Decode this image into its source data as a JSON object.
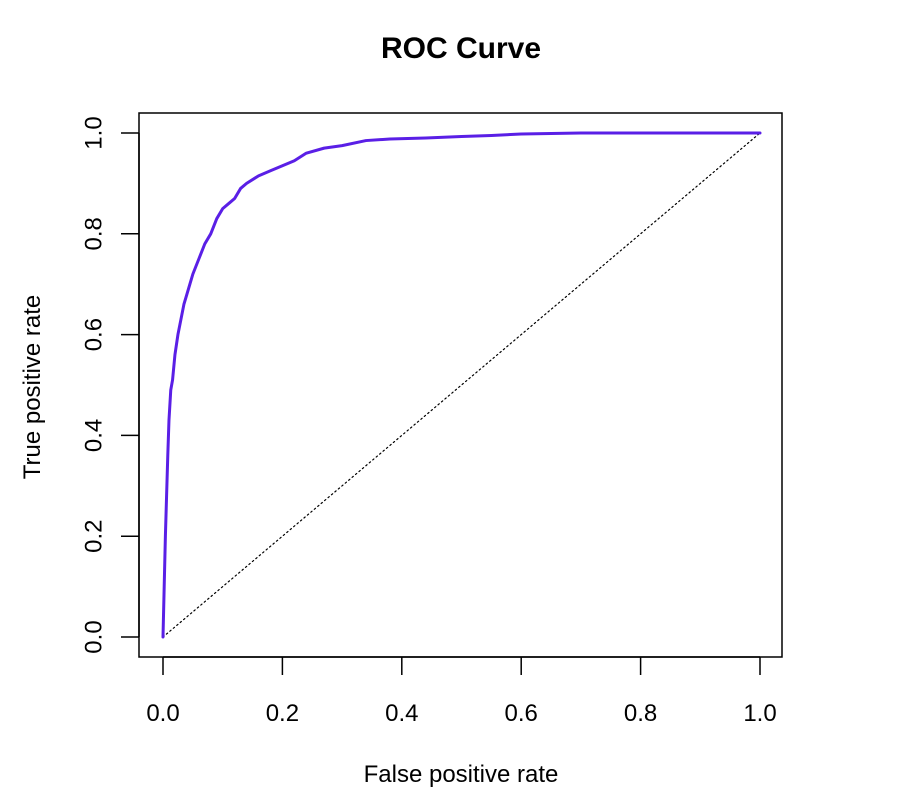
{
  "chart_data": {
    "type": "line",
    "title": "ROC Curve",
    "xlabel": "False positive rate",
    "ylabel": "True positive rate",
    "xlim": [
      0,
      1
    ],
    "ylim": [
      0,
      1
    ],
    "x_ticks": [
      "0.0",
      "0.2",
      "0.4",
      "0.6",
      "0.8",
      "1.0"
    ],
    "y_ticks": [
      "0.0",
      "0.2",
      "0.4",
      "0.6",
      "0.8",
      "1.0"
    ],
    "x_tick_values": [
      0,
      0.2,
      0.4,
      0.6,
      0.8,
      1.0
    ],
    "y_tick_values": [
      0,
      0.2,
      0.4,
      0.6,
      0.8,
      1.0
    ],
    "grid": false,
    "legend": "none",
    "series": [
      {
        "color": "#5a1fe6",
        "x": [
          0.0,
          0.002,
          0.004,
          0.006,
          0.008,
          0.01,
          0.013,
          0.016,
          0.02,
          0.025,
          0.03,
          0.035,
          0.04,
          0.045,
          0.05,
          0.06,
          0.07,
          0.08,
          0.09,
          0.1,
          0.11,
          0.12,
          0.13,
          0.14,
          0.16,
          0.18,
          0.2,
          0.22,
          0.24,
          0.27,
          0.3,
          0.34,
          0.38,
          0.44,
          0.5,
          0.55,
          0.6,
          0.7,
          0.8,
          0.9,
          1.0
        ],
        "y": [
          0.0,
          0.1,
          0.2,
          0.28,
          0.36,
          0.43,
          0.49,
          0.51,
          0.56,
          0.6,
          0.63,
          0.66,
          0.68,
          0.7,
          0.72,
          0.75,
          0.78,
          0.8,
          0.83,
          0.85,
          0.86,
          0.87,
          0.89,
          0.9,
          0.915,
          0.925,
          0.935,
          0.945,
          0.96,
          0.97,
          0.975,
          0.985,
          0.988,
          0.99,
          0.993,
          0.995,
          0.998,
          1.0,
          1.0,
          1.0,
          1.0
        ]
      },
      {
        "x": [
          0,
          1
        ],
        "y": [
          0,
          1
        ],
        "color": "#000000",
        "style": "dotted"
      }
    ]
  }
}
